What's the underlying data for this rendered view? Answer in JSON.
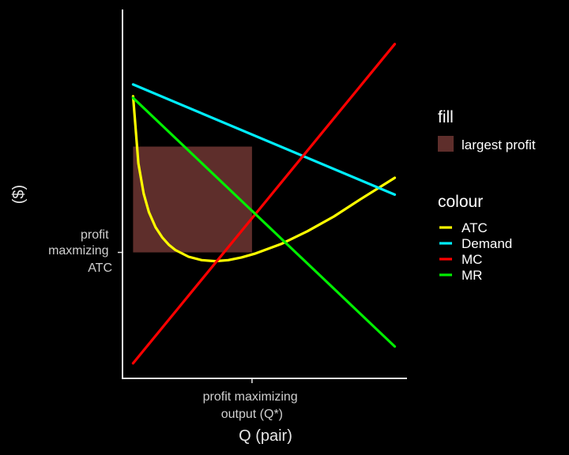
{
  "chart_data": {
    "type": "line",
    "title": "",
    "xlabel": "Q (pair)",
    "ylabel": "($)",
    "x_tick_label": [
      "profit maximizing",
      "output (Q*)"
    ],
    "y_tick_label": [
      "profit",
      "maxmizing",
      "ATC"
    ],
    "xlim": [
      0,
      10
    ],
    "ylim": [
      0,
      10
    ],
    "grid": false,
    "legend_position": "right",
    "optimum": {
      "q": 4.9,
      "price": 6.9,
      "atc": 3.75
    },
    "fill_rect": {
      "name": "largest profit",
      "x": [
        0.4,
        4.9
      ],
      "y": [
        3.75,
        6.9
      ],
      "color": "#5e2e2b"
    },
    "series": [
      {
        "name": "ATC",
        "color": "#ffff00",
        "points": [
          [
            0.4,
            8.4
          ],
          [
            0.6,
            6.4
          ],
          [
            0.8,
            5.5
          ],
          [
            1.0,
            4.95
          ],
          [
            1.25,
            4.5
          ],
          [
            1.5,
            4.2
          ],
          [
            1.75,
            3.98
          ],
          [
            2.0,
            3.82
          ],
          [
            2.5,
            3.62
          ],
          [
            3.0,
            3.52
          ],
          [
            3.5,
            3.49
          ],
          [
            4.0,
            3.52
          ],
          [
            4.5,
            3.6
          ],
          [
            5.0,
            3.71
          ],
          [
            6.0,
            4.0
          ],
          [
            7.0,
            4.38
          ],
          [
            8.0,
            4.82
          ],
          [
            9.0,
            5.33
          ],
          [
            10.3,
            5.97
          ]
        ]
      },
      {
        "name": "Demand",
        "color": "#00eeff",
        "points": [
          [
            0.4,
            8.75
          ],
          [
            10.3,
            5.47
          ]
        ]
      },
      {
        "name": "MC",
        "color": "#ff0000",
        "points": [
          [
            0.4,
            0.45
          ],
          [
            10.3,
            9.95
          ]
        ]
      },
      {
        "name": "MR",
        "color": "#00ee00",
        "points": [
          [
            0.4,
            8.35
          ],
          [
            10.3,
            0.95
          ]
        ]
      }
    ],
    "legend": {
      "fill_title": "fill",
      "fill_items": [
        {
          "label": "largest profit",
          "color": "#5e2e2b"
        }
      ],
      "colour_title": "colour",
      "colour_items": [
        {
          "label": "ATC",
          "color": "#ffff00"
        },
        {
          "label": "Demand",
          "color": "#00eeff"
        },
        {
          "label": "MC",
          "color": "#ff0000"
        },
        {
          "label": "MR",
          "color": "#00ee00"
        }
      ]
    }
  }
}
